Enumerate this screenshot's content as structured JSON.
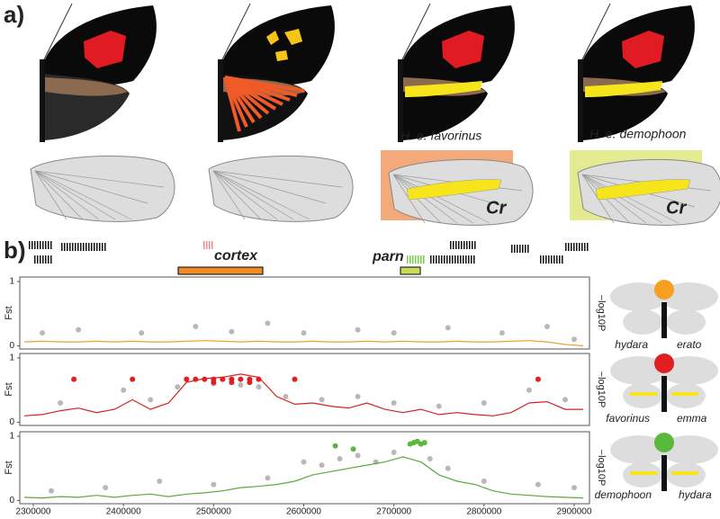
{
  "labels": {
    "panel_a": "a)",
    "panel_b": "b)",
    "subspecies": [
      "H. e. favorinus",
      "H. e. demophoon"
    ],
    "cr": [
      "Cr",
      "Cr"
    ],
    "genes": [
      "cortex",
      "parn"
    ],
    "comparisons": [
      [
        "hydara",
        "erato"
      ],
      [
        "favorinus",
        "emma"
      ],
      [
        "demophoon",
        "hydara"
      ]
    ]
  },
  "chart_data": [
    {
      "type": "scatter",
      "ylabel": "Fst",
      "y2label": "−log10P",
      "xlim": [
        2285000,
        2917000
      ],
      "ylim": [
        -0.05,
        1.07
      ],
      "yticks": [
        0,
        1
      ],
      "series": [
        {
          "type": "scatter",
          "color": "#b8b8b8",
          "x": [
            2310000,
            2350000,
            2420000,
            2480000,
            2520000,
            2560000,
            2600000,
            2660000,
            2700000,
            2760000,
            2820000,
            2870000,
            2900000
          ],
          "values": [
            0.2,
            0.25,
            0.2,
            0.3,
            0.22,
            0.35,
            0.2,
            0.25,
            0.2,
            0.28,
            0.2,
            0.3,
            0.1
          ]
        },
        {
          "type": "line",
          "color": "#f0a030",
          "x": [
            2290000,
            2310000,
            2330000,
            2350000,
            2370000,
            2390000,
            2410000,
            2430000,
            2450000,
            2470000,
            2490000,
            2510000,
            2530000,
            2550000,
            2570000,
            2590000,
            2610000,
            2630000,
            2650000,
            2670000,
            2690000,
            2710000,
            2730000,
            2750000,
            2770000,
            2790000,
            2810000,
            2830000,
            2850000,
            2870000,
            2890000,
            2910000
          ],
          "values": [
            0.06,
            0.07,
            0.06,
            0.06,
            0.07,
            0.06,
            0.07,
            0.06,
            0.06,
            0.07,
            0.08,
            0.07,
            0.06,
            0.07,
            0.06,
            0.06,
            0.07,
            0.06,
            0.06,
            0.07,
            0.06,
            0.07,
            0.06,
            0.06,
            0.07,
            0.06,
            0.06,
            0.07,
            0.08,
            0.06,
            0.02,
            0.0
          ]
        }
      ]
    },
    {
      "type": "scatter",
      "ylabel": "Fst",
      "y2label": "−log10P",
      "xlim": [
        2285000,
        2917000
      ],
      "ylim": [
        -0.05,
        1.07
      ],
      "yticks": [
        0,
        1
      ],
      "series": [
        {
          "type": "scatter",
          "color": "#b8b8b8",
          "x": [
            2330000,
            2400000,
            2430000,
            2460000,
            2500000,
            2530000,
            2550000,
            2580000,
            2620000,
            2660000,
            2700000,
            2750000,
            2800000,
            2850000,
            2890000
          ],
          "values": [
            0.3,
            0.5,
            0.35,
            0.55,
            0.6,
            0.58,
            0.55,
            0.4,
            0.35,
            0.4,
            0.3,
            0.25,
            0.3,
            0.5,
            0.35
          ]
        },
        {
          "type": "scatter",
          "color": "#e02020",
          "x": [
            2345000,
            2410000,
            2470000,
            2480000,
            2490000,
            2500000,
            2510000,
            2520000,
            2530000,
            2540000,
            2550000,
            2590000,
            2860000,
            2500000,
            2520000,
            2540000
          ],
          "values": [
            0.67,
            0.67,
            0.67,
            0.67,
            0.67,
            0.67,
            0.67,
            0.67,
            0.67,
            0.67,
            0.67,
            0.67,
            0.67,
            0.62,
            0.62,
            0.62
          ]
        },
        {
          "type": "line",
          "color": "#d62020",
          "x": [
            2290000,
            2310000,
            2330000,
            2350000,
            2370000,
            2390000,
            2410000,
            2430000,
            2450000,
            2470000,
            2490000,
            2510000,
            2530000,
            2550000,
            2570000,
            2590000,
            2610000,
            2630000,
            2650000,
            2670000,
            2690000,
            2710000,
            2730000,
            2750000,
            2770000,
            2790000,
            2810000,
            2830000,
            2850000,
            2870000,
            2890000,
            2910000
          ],
          "values": [
            0.1,
            0.12,
            0.18,
            0.22,
            0.15,
            0.2,
            0.35,
            0.2,
            0.3,
            0.62,
            0.68,
            0.7,
            0.75,
            0.7,
            0.4,
            0.28,
            0.3,
            0.25,
            0.22,
            0.3,
            0.2,
            0.15,
            0.2,
            0.12,
            0.15,
            0.12,
            0.1,
            0.15,
            0.3,
            0.32,
            0.2,
            0.2
          ]
        }
      ]
    },
    {
      "type": "scatter",
      "ylabel": "Fst",
      "y2label": "−log10P",
      "xlim": [
        2285000,
        2917000
      ],
      "ylim": [
        -0.05,
        1.07
      ],
      "yticks": [
        0,
        1
      ],
      "xticks": [
        2300000,
        2400000,
        2500000,
        2600000,
        2700000,
        2800000,
        2900000
      ],
      "series": [
        {
          "type": "scatter",
          "color": "#b8b8b8",
          "x": [
            2320000,
            2380000,
            2440000,
            2500000,
            2560000,
            2600000,
            2620000,
            2640000,
            2660000,
            2680000,
            2700000,
            2740000,
            2760000,
            2800000,
            2860000,
            2900000
          ],
          "values": [
            0.15,
            0.2,
            0.3,
            0.25,
            0.35,
            0.6,
            0.55,
            0.65,
            0.7,
            0.6,
            0.75,
            0.65,
            0.5,
            0.3,
            0.25,
            0.2
          ]
        },
        {
          "type": "scatter",
          "color": "#5ab83c",
          "x": [
            2635000,
            2655000,
            2718000,
            2722000,
            2726000,
            2730000,
            2734000
          ],
          "values": [
            0.85,
            0.8,
            0.88,
            0.9,
            0.92,
            0.88,
            0.9
          ]
        },
        {
          "type": "line",
          "color": "#5aaa3c",
          "x": [
            2290000,
            2310000,
            2330000,
            2350000,
            2370000,
            2390000,
            2410000,
            2430000,
            2450000,
            2470000,
            2490000,
            2510000,
            2530000,
            2550000,
            2570000,
            2590000,
            2610000,
            2630000,
            2650000,
            2670000,
            2690000,
            2710000,
            2730000,
            2750000,
            2770000,
            2790000,
            2810000,
            2830000,
            2850000,
            2870000,
            2890000,
            2910000
          ],
          "values": [
            0.05,
            0.04,
            0.06,
            0.05,
            0.08,
            0.05,
            0.08,
            0.1,
            0.06,
            0.1,
            0.12,
            0.15,
            0.2,
            0.22,
            0.25,
            0.3,
            0.4,
            0.45,
            0.5,
            0.55,
            0.6,
            0.68,
            0.6,
            0.4,
            0.3,
            0.25,
            0.15,
            0.1,
            0.08,
            0.06,
            0.05,
            0.04
          ]
        }
      ]
    }
  ]
}
